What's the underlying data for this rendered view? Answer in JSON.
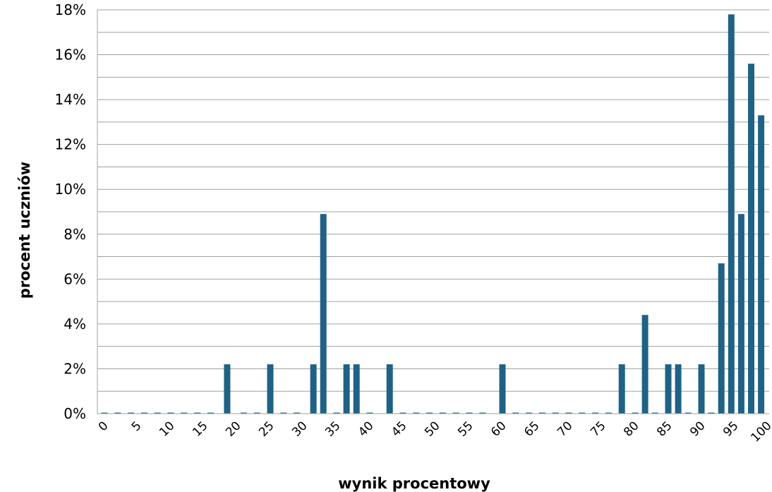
{
  "chart_data": {
    "type": "bar",
    "title": "",
    "xlabel": "wynik procentowy",
    "ylabel": "procent uczniów",
    "ylim": [
      0,
      18
    ],
    "y_ticks": [
      "0%",
      "2%",
      "4%",
      "6%",
      "8%",
      "10%",
      "12%",
      "14%",
      "16%",
      "18%"
    ],
    "x_tick_labels": [
      "0",
      "5",
      "10",
      "15",
      "20",
      "25",
      "30",
      "35",
      "40",
      "45",
      "50",
      "55",
      "60",
      "65",
      "70",
      "75",
      "80",
      "85",
      "90",
      "95",
      "100"
    ],
    "x_range": [
      0,
      100
    ],
    "grid": true,
    "bar_color": "#1f6285",
    "points": [
      {
        "x": 0,
        "y": 0
      },
      {
        "x": 2,
        "y": 0
      },
      {
        "x": 4,
        "y": 0
      },
      {
        "x": 6,
        "y": 0
      },
      {
        "x": 8,
        "y": 0
      },
      {
        "x": 10,
        "y": 0
      },
      {
        "x": 12,
        "y": 0
      },
      {
        "x": 14,
        "y": 0
      },
      {
        "x": 16,
        "y": 0
      },
      {
        "x": 18.5,
        "y": 2.2
      },
      {
        "x": 21,
        "y": 0
      },
      {
        "x": 23,
        "y": 0
      },
      {
        "x": 25,
        "y": 2.2
      },
      {
        "x": 27,
        "y": 0
      },
      {
        "x": 29,
        "y": 0
      },
      {
        "x": 31.5,
        "y": 2.2
      },
      {
        "x": 33,
        "y": 8.9
      },
      {
        "x": 35,
        "y": 0
      },
      {
        "x": 36.5,
        "y": 2.2
      },
      {
        "x": 38,
        "y": 2.2
      },
      {
        "x": 40,
        "y": 0
      },
      {
        "x": 43,
        "y": 2.2
      },
      {
        "x": 45,
        "y": 0
      },
      {
        "x": 47,
        "y": 0
      },
      {
        "x": 49,
        "y": 0
      },
      {
        "x": 51,
        "y": 0
      },
      {
        "x": 53,
        "y": 0
      },
      {
        "x": 55,
        "y": 0
      },
      {
        "x": 57,
        "y": 0
      },
      {
        "x": 60,
        "y": 2.2
      },
      {
        "x": 62,
        "y": 0
      },
      {
        "x": 64,
        "y": 0
      },
      {
        "x": 66,
        "y": 0
      },
      {
        "x": 68,
        "y": 0
      },
      {
        "x": 70,
        "y": 0
      },
      {
        "x": 72,
        "y": 0
      },
      {
        "x": 74,
        "y": 0
      },
      {
        "x": 76,
        "y": 0
      },
      {
        "x": 78,
        "y": 2.2
      },
      {
        "x": 80,
        "y": 0
      },
      {
        "x": 81.5,
        "y": 4.4
      },
      {
        "x": 83,
        "y": 0
      },
      {
        "x": 85,
        "y": 2.2
      },
      {
        "x": 86.5,
        "y": 2.2
      },
      {
        "x": 88,
        "y": 0
      },
      {
        "x": 90,
        "y": 2.2
      },
      {
        "x": 91.5,
        "y": 0
      },
      {
        "x": 93,
        "y": 6.7
      },
      {
        "x": 94.5,
        "y": 17.8
      },
      {
        "x": 96,
        "y": 8.9
      },
      {
        "x": 97.5,
        "y": 15.6
      },
      {
        "x": 99,
        "y": 13.3
      }
    ]
  }
}
